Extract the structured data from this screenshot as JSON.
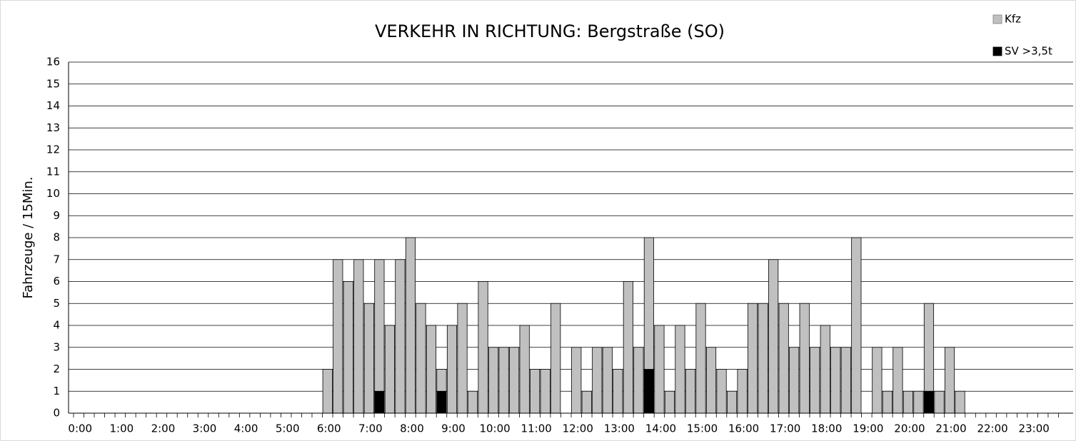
{
  "chart_data": {
    "type": "bar",
    "title": "VERKEHR IN RICHTUNG: Bergstraße (SO)",
    "y_label": "Fahrzeuge / 15Min.",
    "categories": [
      "0:00",
      null,
      null,
      null,
      "1:00",
      null,
      null,
      null,
      "2:00",
      null,
      null,
      null,
      "3:00",
      null,
      null,
      null,
      "4:00",
      null,
      null,
      null,
      "5:00",
      null,
      null,
      null,
      "6:00",
      null,
      null,
      null,
      "7:00",
      null,
      null,
      null,
      "8:00",
      null,
      null,
      null,
      "9:00",
      null,
      null,
      null,
      "10:00",
      null,
      null,
      null,
      "11:00",
      null,
      null,
      null,
      "12:00",
      null,
      null,
      null,
      "13:00",
      null,
      null,
      null,
      "14:00",
      null,
      null,
      null,
      "15:00",
      null,
      null,
      null,
      "16:00",
      null,
      null,
      null,
      "17:00",
      null,
      null,
      null,
      "18:00",
      null,
      null,
      null,
      "19:00",
      null,
      null,
      null,
      "20:00",
      null,
      null,
      null,
      "21:00",
      null,
      null,
      null,
      "22:00",
      null,
      null,
      null,
      "23:00",
      null,
      null,
      null
    ],
    "series": [
      {
        "name": "Kfz",
        "color": "#c0c0c0",
        "values": [
          0,
          0,
          0,
          0,
          0,
          0,
          0,
          0,
          0,
          0,
          0,
          0,
          0,
          0,
          0,
          0,
          0,
          0,
          0,
          0,
          0,
          0,
          0,
          0,
          2,
          7,
          6,
          7,
          5,
          7,
          4,
          7,
          8,
          5,
          4,
          2,
          4,
          5,
          1,
          6,
          3,
          3,
          3,
          4,
          2,
          2,
          5,
          0,
          3,
          1,
          3,
          3,
          2,
          6,
          3,
          8,
          4,
          1,
          4,
          2,
          5,
          3,
          2,
          1,
          2,
          5,
          5,
          7,
          5,
          3,
          5,
          3,
          4,
          3,
          3,
          8,
          0,
          3,
          1,
          3,
          1,
          1,
          5,
          1,
          3,
          1,
          0,
          0,
          0,
          0,
          0,
          0,
          0,
          0,
          0,
          0
        ]
      },
      {
        "name": "SV >3,5t",
        "color": "#000000",
        "values": [
          0,
          0,
          0,
          0,
          0,
          0,
          0,
          0,
          0,
          0,
          0,
          0,
          0,
          0,
          0,
          0,
          0,
          0,
          0,
          0,
          0,
          0,
          0,
          0,
          0,
          0,
          0,
          0,
          0,
          1,
          0,
          0,
          0,
          0,
          0,
          1,
          0,
          0,
          0,
          0,
          0,
          0,
          0,
          0,
          0,
          0,
          0,
          0,
          0,
          0,
          0,
          0,
          0,
          0,
          0,
          2,
          0,
          0,
          0,
          0,
          0,
          0,
          0,
          0,
          0,
          0,
          0,
          0,
          0,
          0,
          0,
          0,
          0,
          0,
          0,
          0,
          0,
          0,
          0,
          0,
          0,
          0,
          1,
          0,
          0,
          0,
          0,
          0,
          0,
          0,
          0,
          0,
          0,
          0,
          0,
          0
        ]
      }
    ],
    "ylim": [
      0,
      16
    ],
    "yticks": [
      0,
      1,
      2,
      3,
      4,
      5,
      6,
      7,
      8,
      9,
      10,
      11,
      12,
      13,
      14,
      15,
      16
    ],
    "grid": true,
    "legend": "top-right"
  }
}
